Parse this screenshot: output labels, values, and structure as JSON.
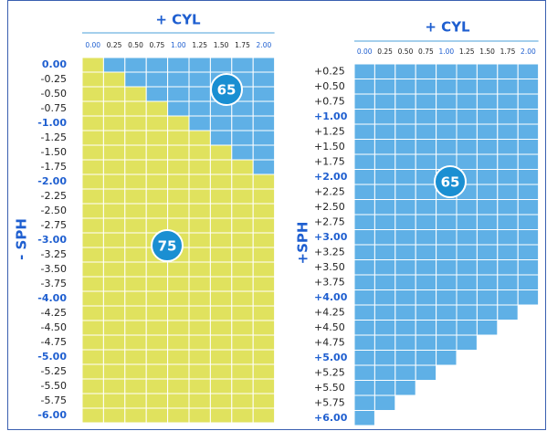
{
  "left": {
    "title": "+ CYL",
    "cyl": [
      "0.00",
      "0.25",
      "0.50",
      "0.75",
      "1.00",
      "1.25",
      "1.50",
      "1.75",
      "2.00"
    ],
    "sph": [
      "0.00",
      "-0.25",
      "-0.50",
      "-0.75",
      "-1.00",
      "-1.25",
      "-1.50",
      "-1.75",
      "-2.00",
      "-2.25",
      "-2.50",
      "-2.75",
      "-3.00",
      "-3.25",
      "-3.50",
      "-3.75",
      "-4.00",
      "-4.25",
      "-4.50",
      "-4.75",
      "-5.00",
      "-5.25",
      "-5.50",
      "-5.75",
      "-6.00"
    ],
    "axis_label": "- SPH",
    "badges": [
      "65",
      "75"
    ]
  },
  "right": {
    "title": "+ CYL",
    "cyl": [
      "0.00",
      "0.25",
      "0.50",
      "0.75",
      "1.00",
      "1.25",
      "1.50",
      "1.75",
      "2.00"
    ],
    "sph": [
      "+0.25",
      "+0.50",
      "+0.75",
      "+1.00",
      "+1.25",
      "+1.50",
      "+1.75",
      "+2.00",
      "+2.25",
      "+2.50",
      "+2.75",
      "+3.00",
      "+3.25",
      "+3.50",
      "+3.75",
      "+4.00",
      "+4.25",
      "+4.50",
      "+4.75",
      "+5.00",
      "+5.25",
      "+5.50",
      "+5.75",
      "+6.00"
    ],
    "axis_label": "+SPH",
    "badges": [
      "65"
    ]
  }
}
